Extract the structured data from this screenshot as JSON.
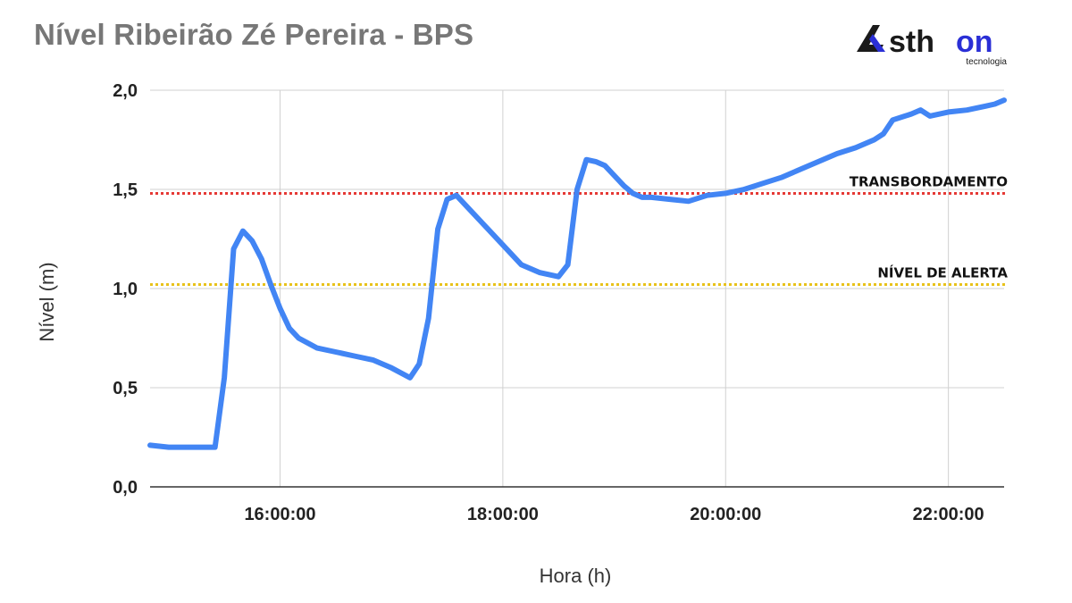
{
  "header": {
    "title": "Nível Ribeirão Zé Pereira - BPS"
  },
  "brand": {
    "name": "Asthon",
    "tagline": "tecnologia",
    "colors": {
      "dark": "#1a1a1a",
      "accent": "#2a2fd6"
    }
  },
  "chart_data": {
    "type": "line",
    "xlabel": "Hora (h)",
    "ylabel": "Nível (m)",
    "xlim": [
      "14:50",
      "22:30"
    ],
    "ylim": [
      0,
      2.0
    ],
    "grid": true,
    "x_ticks": [
      "16:00:00",
      "18:00:00",
      "20:00:00",
      "22:00:00"
    ],
    "y_ticks": [
      "0,0",
      "0,5",
      "1,0",
      "1,5",
      "2,0"
    ],
    "reference_lines": [
      {
        "label": "TRANSBORDAMENTO",
        "value": 1.48,
        "color": "#e53935",
        "style": "dotted"
      },
      {
        "label": "NÍVEL DE ALERTA",
        "value": 1.02,
        "color": "#e8c21b",
        "style": "dotted"
      }
    ],
    "series": [
      {
        "color": "#4285f4",
        "x": [
          "14:50",
          "15:00",
          "15:10",
          "15:15",
          "15:20",
          "15:25",
          "15:30",
          "15:35",
          "15:40",
          "15:45",
          "15:50",
          "15:55",
          "16:00",
          "16:05",
          "16:10",
          "16:20",
          "16:30",
          "16:40",
          "16:50",
          "17:00",
          "17:10",
          "17:15",
          "17:20",
          "17:25",
          "17:30",
          "17:35",
          "17:40",
          "17:50",
          "18:00",
          "18:10",
          "18:20",
          "18:30",
          "18:35",
          "18:40",
          "18:45",
          "18:50",
          "18:55",
          "19:00",
          "19:05",
          "19:10",
          "19:15",
          "19:20",
          "19:30",
          "19:40",
          "19:50",
          "20:00",
          "20:10",
          "20:20",
          "20:30",
          "20:40",
          "20:50",
          "21:00",
          "21:10",
          "21:20",
          "21:25",
          "21:30",
          "21:40",
          "21:45",
          "21:50",
          "22:00",
          "22:10",
          "22:20",
          "22:25",
          "22:30"
        ],
        "values": [
          0.21,
          0.2,
          0.2,
          0.2,
          0.2,
          0.2,
          0.55,
          1.2,
          1.29,
          1.24,
          1.15,
          1.02,
          0.9,
          0.8,
          0.75,
          0.7,
          0.68,
          0.66,
          0.64,
          0.6,
          0.55,
          0.62,
          0.85,
          1.3,
          1.45,
          1.47,
          1.42,
          1.32,
          1.22,
          1.12,
          1.08,
          1.06,
          1.12,
          1.5,
          1.65,
          1.64,
          1.62,
          1.57,
          1.52,
          1.48,
          1.46,
          1.46,
          1.45,
          1.44,
          1.47,
          1.48,
          1.5,
          1.53,
          1.56,
          1.6,
          1.64,
          1.68,
          1.71,
          1.75,
          1.78,
          1.85,
          1.88,
          1.9,
          1.87,
          1.89,
          1.9,
          1.92,
          1.93,
          1.95
        ]
      }
    ]
  }
}
